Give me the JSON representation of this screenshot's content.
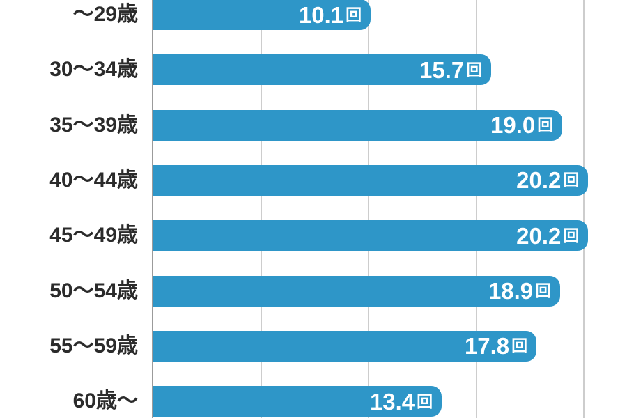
{
  "chart_data": {
    "type": "bar",
    "orientation": "horizontal",
    "title": "",
    "xlabel": "",
    "ylabel": "",
    "categories": [
      "～29歳",
      "30～34歳",
      "35～39歳",
      "40～44歳",
      "45～49歳",
      "50～54歳",
      "55～59歳",
      "60歳～"
    ],
    "values": [
      10.1,
      15.7,
      19.0,
      20.2,
      20.2,
      18.9,
      17.8,
      13.4
    ],
    "value_labels": [
      "10.1",
      "15.7",
      "19.0",
      "20.2",
      "20.2",
      "18.9",
      "17.8",
      "13.4"
    ],
    "unit": "回",
    "xlim": [
      0,
      22
    ],
    "gridlines": [
      5,
      10,
      15,
      20
    ],
    "grid": true,
    "legend": "none",
    "colors": {
      "bar": "#2E96C8",
      "category_label": "#2B2B2B",
      "value_text": "#FFFFFF",
      "gridline": "#CDCDCD",
      "axis_line": "#9B9B9B",
      "background": "#FFFFFF"
    }
  }
}
